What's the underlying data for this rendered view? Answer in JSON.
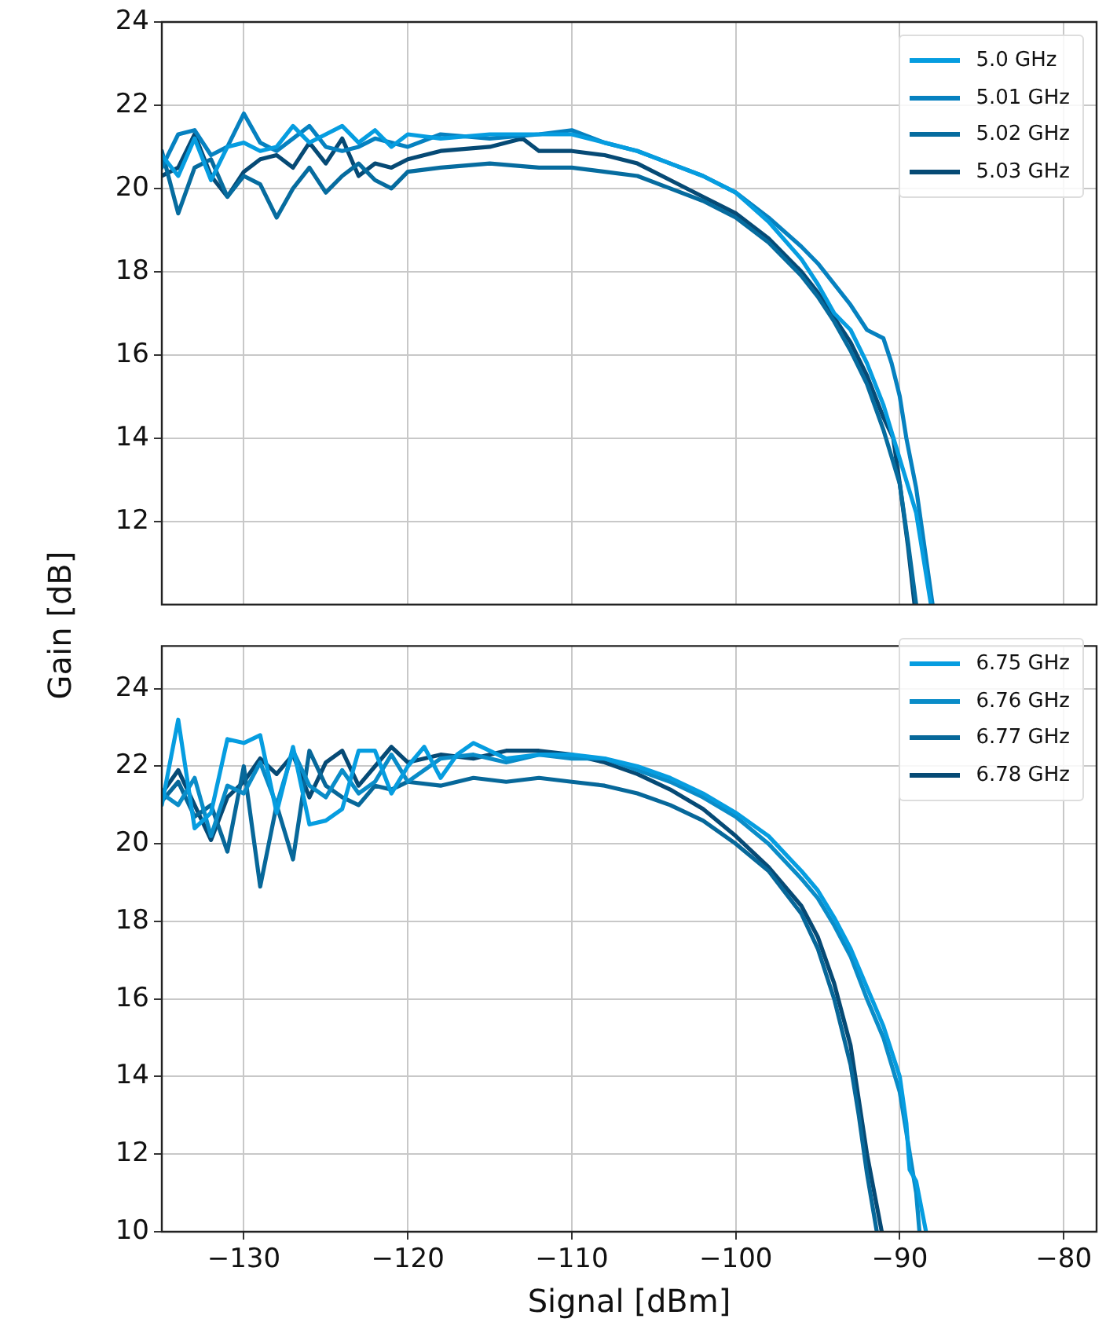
{
  "chart_data": [
    {
      "type": "line",
      "ylabel": "Gain [dB]",
      "xlim": [
        -135,
        -78
      ],
      "xticks": [
        -130,
        -120,
        -110,
        -100,
        -90,
        -80
      ],
      "ylim": [
        10,
        24
      ],
      "yticks": [
        12,
        14,
        16,
        18,
        20,
        22,
        24
      ],
      "grid": true,
      "legend": "top right",
      "tick_labels": "y",
      "series": [
        {
          "name": "5.0 GHz",
          "color": "#069de0",
          "x": [
            -135,
            -134,
            -133,
            -132,
            -131,
            -130,
            -129,
            -128,
            -127,
            -126,
            -125,
            -124,
            -123,
            -122,
            -121,
            -120,
            -118,
            -115,
            -112,
            -110,
            -108,
            -106,
            -104,
            -102,
            -100,
            -98,
            -96,
            -95,
            -94,
            -93,
            -92,
            -91,
            -90,
            -89,
            -88.1
          ],
          "values": [
            20.8,
            20.3,
            21.2,
            20.2,
            21.0,
            21.1,
            20.9,
            21.0,
            21.5,
            21.1,
            21.3,
            21.5,
            21.1,
            21.4,
            21.0,
            21.3,
            21.2,
            21.3,
            21.3,
            21.3,
            21.1,
            20.9,
            20.6,
            20.3,
            19.9,
            19.2,
            18.3,
            17.7,
            17.0,
            16.6,
            15.8,
            14.8,
            13.5,
            12.2,
            10.0
          ]
        },
        {
          "name": "5.01 GHz",
          "color": "#0681c0",
          "x": [
            -135,
            -134,
            -133,
            -132,
            -131,
            -130,
            -129,
            -128,
            -127,
            -126,
            -125,
            -124,
            -123,
            -122,
            -121,
            -120,
            -118,
            -115,
            -112,
            -110,
            -108,
            -106,
            -104,
            -102,
            -100,
            -98,
            -96,
            -95,
            -94,
            -93,
            -92,
            -91,
            -90.5,
            -90,
            -89.6,
            -89,
            -88.5,
            -88
          ],
          "values": [
            20.5,
            21.3,
            21.4,
            20.8,
            21.0,
            21.8,
            21.1,
            20.9,
            21.2,
            21.5,
            21.0,
            20.9,
            21.0,
            21.2,
            21.1,
            21.0,
            21.3,
            21.2,
            21.3,
            21.4,
            21.1,
            20.9,
            20.6,
            20.3,
            19.9,
            19.3,
            18.6,
            18.2,
            17.7,
            17.2,
            16.6,
            16.4,
            15.8,
            15.0,
            14.0,
            12.8,
            11.4,
            10.0
          ]
        },
        {
          "name": "5.02 GHz",
          "color": "#066c9f",
          "x": [
            -135,
            -134,
            -133,
            -132,
            -131,
            -130,
            -129,
            -128,
            -127,
            -126,
            -125,
            -124,
            -123,
            -122,
            -121,
            -120,
            -118,
            -115,
            -112,
            -110,
            -108,
            -106,
            -104,
            -102,
            -100,
            -98,
            -96,
            -95,
            -94,
            -93,
            -92,
            -91,
            -90,
            -89.5,
            -89
          ],
          "values": [
            20.9,
            19.4,
            20.5,
            20.7,
            19.8,
            20.3,
            20.1,
            19.3,
            20.0,
            20.5,
            19.9,
            20.3,
            20.6,
            20.2,
            20.0,
            20.4,
            20.5,
            20.6,
            20.5,
            20.5,
            20.4,
            20.3,
            20.0,
            19.7,
            19.3,
            18.7,
            17.9,
            17.4,
            16.8,
            16.1,
            15.3,
            14.2,
            12.9,
            11.5,
            10.0
          ]
        },
        {
          "name": "5.03 GHz",
          "color": "#064a75",
          "x": [
            -135,
            -134,
            -133,
            -132,
            -131,
            -130,
            -129,
            -128,
            -127,
            -126,
            -125,
            -124,
            -123,
            -122,
            -121,
            -120,
            -118,
            -115,
            -113,
            -112,
            -110,
            -108,
            -106,
            -104,
            -102,
            -100,
            -98,
            -96,
            -95,
            -94,
            -93,
            -92,
            -91,
            -90.4,
            -90,
            -89.5,
            -89.1
          ],
          "values": [
            20.3,
            20.5,
            21.3,
            20.3,
            19.8,
            20.4,
            20.7,
            20.8,
            20.5,
            21.1,
            20.6,
            21.2,
            20.3,
            20.6,
            20.5,
            20.7,
            20.9,
            21.0,
            21.2,
            20.9,
            20.9,
            20.8,
            20.6,
            20.2,
            19.8,
            19.4,
            18.8,
            18.0,
            17.5,
            16.9,
            16.3,
            15.5,
            14.5,
            14.0,
            12.9,
            11.4,
            10.0
          ]
        }
      ]
    },
    {
      "type": "line",
      "xlabel": "Signal [dBm]",
      "xlim": [
        -135,
        -78
      ],
      "xticks": [
        -130,
        -120,
        -110,
        -100,
        -90,
        -80
      ],
      "ylim": [
        10,
        25.1
      ],
      "yticks": [
        10,
        12,
        14,
        16,
        18,
        20,
        22,
        24
      ],
      "grid": true,
      "legend": "top right",
      "series": [
        {
          "name": "6.75 GHz",
          "color": "#069de0",
          "x": [
            -135,
            -134,
            -133,
            -132,
            -131,
            -130,
            -129,
            -128,
            -127,
            -126,
            -125,
            -124,
            -123,
            -122,
            -121,
            -120,
            -119,
            -118,
            -117,
            -116,
            -114,
            -112,
            -110,
            -108,
            -106,
            -104,
            -102,
            -100,
            -98,
            -96,
            -95,
            -94,
            -93,
            -92,
            -91,
            -90,
            -89.6,
            -89.4,
            -89,
            -88.4
          ],
          "values": [
            21.0,
            23.2,
            20.4,
            20.8,
            22.7,
            22.6,
            22.8,
            20.8,
            22.5,
            20.5,
            20.6,
            20.9,
            22.4,
            22.4,
            21.3,
            22.0,
            22.5,
            21.7,
            22.3,
            22.6,
            22.2,
            22.3,
            22.3,
            22.2,
            22.0,
            21.7,
            21.3,
            20.8,
            20.2,
            19.3,
            18.8,
            18.1,
            17.3,
            16.3,
            15.3,
            14.0,
            12.8,
            11.6,
            11.3,
            10.0
          ]
        },
        {
          "name": "6.76 GHz",
          "color": "#0a8cc8",
          "x": [
            -135,
            -134,
            -133,
            -132,
            -131,
            -130,
            -129,
            -128,
            -127,
            -126,
            -125,
            -124,
            -123,
            -122,
            -121,
            -120,
            -118,
            -116,
            -114,
            -112,
            -110,
            -108,
            -106,
            -104,
            -102,
            -100,
            -98,
            -96,
            -95,
            -94,
            -93,
            -92,
            -91,
            -90,
            -89.5,
            -89,
            -88.8
          ],
          "values": [
            21.3,
            21.0,
            21.7,
            20.2,
            21.5,
            21.3,
            22.1,
            21.0,
            22.4,
            21.5,
            21.2,
            21.9,
            21.3,
            21.6,
            22.3,
            21.6,
            22.2,
            22.3,
            22.1,
            22.3,
            22.2,
            22.2,
            21.9,
            21.6,
            21.2,
            20.7,
            20.0,
            19.1,
            18.6,
            17.9,
            17.1,
            16.0,
            15.0,
            13.6,
            12.3,
            11.0,
            10.0
          ]
        },
        {
          "name": "6.77 GHz",
          "color": "#07689a",
          "x": [
            -135,
            -134,
            -133,
            -132,
            -131,
            -130,
            -129,
            -128,
            -127,
            -126,
            -125,
            -124,
            -123,
            -122,
            -121,
            -120,
            -118,
            -116,
            -114,
            -112,
            -110,
            -108,
            -106,
            -104,
            -102,
            -100,
            -98,
            -96,
            -95,
            -94,
            -93,
            -92.5,
            -92,
            -91.4
          ],
          "values": [
            21.1,
            21.6,
            20.7,
            21.0,
            19.8,
            22.0,
            18.9,
            21.0,
            19.6,
            22.4,
            21.5,
            21.2,
            21.0,
            21.5,
            21.4,
            21.6,
            21.5,
            21.7,
            21.6,
            21.7,
            21.6,
            21.5,
            21.3,
            21.0,
            20.6,
            20.0,
            19.3,
            18.2,
            17.3,
            16.0,
            14.3,
            13.0,
            11.5,
            10.0
          ]
        },
        {
          "name": "6.78 GHz",
          "color": "#064a75",
          "x": [
            -135,
            -134,
            -133,
            -132,
            -131,
            -130,
            -129,
            -128,
            -127,
            -126,
            -125,
            -124,
            -123,
            -122,
            -121,
            -120,
            -118,
            -116,
            -114,
            -112,
            -110,
            -108,
            -106,
            -104,
            -102,
            -100,
            -98,
            -96,
            -95,
            -94,
            -93,
            -92.5,
            -92,
            -91.1
          ],
          "values": [
            21.3,
            21.9,
            21.0,
            20.1,
            21.2,
            21.6,
            22.2,
            21.8,
            22.3,
            21.2,
            22.1,
            22.4,
            21.5,
            22.0,
            22.5,
            22.1,
            22.3,
            22.2,
            22.4,
            22.4,
            22.3,
            22.1,
            21.8,
            21.4,
            20.9,
            20.2,
            19.4,
            18.4,
            17.6,
            16.4,
            14.8,
            13.4,
            12.0,
            10.0
          ]
        }
      ]
    }
  ]
}
